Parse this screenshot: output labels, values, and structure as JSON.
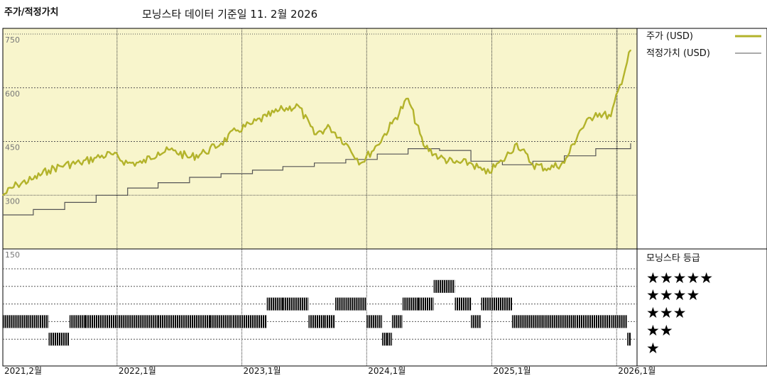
{
  "header": {
    "label": "주가/적정가치",
    "source": "모닝스타 데이터 기준일 11. 2월 2026"
  },
  "legend": {
    "price": "주가 (USD)",
    "fair_value": "적정가치 (USD)",
    "rating_title": "모닝스타 등급",
    "stars": [
      "★★★★★",
      "★★★★",
      "★★★",
      "★★",
      "★"
    ]
  },
  "colors": {
    "price_line": "#b3b32b",
    "fair_value_line": "#555555",
    "price_panel_bg": "#f8f5cc"
  },
  "chart_data": [
    {
      "type": "line",
      "title": "주가/적정가치",
      "y_ticks": [
        750,
        600,
        450,
        300,
        150
      ],
      "ylim": [
        150,
        750
      ],
      "grid": true,
      "legend_placement": "right",
      "x_tick_labels": [
        "2021,2월",
        "2022,1월",
        "2023,1월",
        "2024,1월",
        "2025,1월",
        "2026,1월"
      ],
      "x_tick_dates": [
        "2021-02-01",
        "2022-01-01",
        "2023-01-01",
        "2024-01-01",
        "2025-01-01",
        "2026-01-01"
      ],
      "xlim": [
        "2021-02-01",
        "2026-02-11"
      ],
      "series": [
        {
          "name": "주가 (USD)",
          "x": [
            "2021-02-01",
            "2021-03-15",
            "2021-05-01",
            "2021-06-15",
            "2021-08-01",
            "2021-09-15",
            "2021-11-01",
            "2021-12-15",
            "2022-02-01",
            "2022-03-15",
            "2022-05-01",
            "2022-06-15",
            "2022-08-01",
            "2022-09-15",
            "2022-11-01",
            "2022-12-15",
            "2023-02-01",
            "2023-03-15",
            "2023-05-01",
            "2023-06-15",
            "2023-08-01",
            "2023-09-15",
            "2023-11-01",
            "2023-12-15",
            "2024-02-01",
            "2024-03-15",
            "2024-05-01",
            "2024-06-15",
            "2024-08-01",
            "2024-09-15",
            "2024-11-01",
            "2024-12-15",
            "2025-02-01",
            "2025-03-15",
            "2025-05-01",
            "2025-06-15",
            "2025-08-01",
            "2025-09-15",
            "2025-11-01",
            "2025-12-15",
            "2026-02-11"
          ],
          "values": [
            300,
            330,
            345,
            370,
            385,
            390,
            405,
            415,
            390,
            390,
            420,
            425,
            405,
            420,
            445,
            480,
            500,
            520,
            540,
            550,
            470,
            490,
            445,
            390,
            440,
            500,
            570,
            440,
            405,
            390,
            390,
            360,
            395,
            445,
            385,
            375,
            390,
            480,
            530,
            520,
            705
          ]
        },
        {
          "name": "적정가치 (USD)",
          "x": [
            "2021-02-01",
            "2021-05-01",
            "2021-08-01",
            "2021-11-01",
            "2022-02-01",
            "2022-05-01",
            "2022-08-01",
            "2022-11-01",
            "2023-02-01",
            "2023-05-01",
            "2023-08-01",
            "2023-11-01",
            "2024-02-01",
            "2024-05-01",
            "2024-08-01",
            "2024-11-01",
            "2025-02-01",
            "2025-05-01",
            "2025-08-01",
            "2025-11-01",
            "2026-02-11"
          ],
          "values": [
            245,
            260,
            280,
            300,
            320,
            335,
            350,
            360,
            370,
            380,
            390,
            400,
            415,
            430,
            425,
            395,
            385,
            395,
            410,
            430,
            445
          ],
          "step": true
        }
      ]
    },
    {
      "type": "heatmap",
      "title": "모닝스타 등급",
      "levels": [
        5,
        4,
        3,
        2,
        1
      ],
      "x": [
        "2021-02-01",
        "2021-04-15",
        "2021-05-15",
        "2021-06-15",
        "2021-08-15",
        "2021-10-01",
        "2022-01-01",
        "2022-05-01",
        "2022-10-01",
        "2022-12-01",
        "2023-01-01",
        "2023-03-15",
        "2023-05-01",
        "2023-07-15",
        "2023-09-01",
        "2023-10-01",
        "2023-11-01",
        "2024-01-01",
        "2024-02-01",
        "2024-02-15",
        "2024-03-01",
        "2024-03-15",
        "2024-04-15",
        "2024-06-01",
        "2024-07-15",
        "2024-09-15",
        "2024-11-01",
        "2024-12-01",
        "2025-01-01",
        "2025-03-01",
        "2025-06-01",
        "2025-09-01",
        "2025-12-15",
        "2026-02-01"
      ],
      "values": [
        2,
        2,
        2,
        1,
        2,
        2,
        2,
        2,
        2,
        2,
        2,
        3,
        3,
        2,
        2,
        3,
        3,
        2,
        2,
        1,
        1,
        2,
        3,
        3,
        4,
        3,
        2,
        3,
        3,
        2,
        2,
        2,
        2,
        1
      ]
    }
  ]
}
